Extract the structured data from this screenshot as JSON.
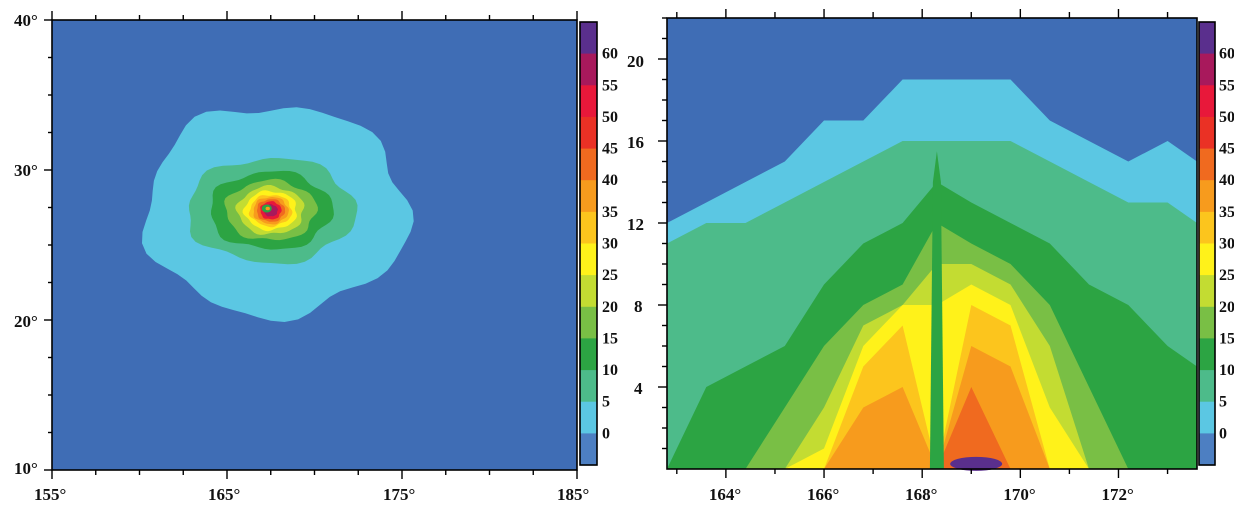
{
  "palette": {
    "background": "#3f6db5",
    "levels": [
      {
        "label": "0",
        "color": "#4d7fc2"
      },
      {
        "label": "5",
        "color": "#5bc7e3"
      },
      {
        "label": "10",
        "color": "#4dbb8a"
      },
      {
        "label": "15",
        "color": "#2ca443"
      },
      {
        "label": "20",
        "color": "#79bf45"
      },
      {
        "label": "25",
        "color": "#c3dc32"
      },
      {
        "label": "30",
        "color": "#fff21a"
      },
      {
        "label": "35",
        "color": "#fcc51d"
      },
      {
        "label": "40",
        "color": "#f79b1d"
      },
      {
        "label": "45",
        "color": "#f06a1f"
      },
      {
        "label": "50",
        "color": "#ea3125"
      },
      {
        "label": "55",
        "color": "#e8183a"
      },
      {
        "label": "60",
        "color": "#a8195c"
      },
      {
        "label": "",
        "color": "#5a2f8d"
      }
    ]
  },
  "chart_data": [
    {
      "type": "heatmap",
      "title": "",
      "xlabel": "",
      "ylabel": "",
      "x_ticks": [
        "155°",
        "165°",
        "175°",
        "185°"
      ],
      "y_ticks": [
        "10°",
        "20°",
        "30°",
        "40°"
      ],
      "xlim": [
        155,
        185
      ],
      "ylim": [
        10,
        40
      ],
      "colorbar_labels": [
        "60",
        "55",
        "50",
        "45",
        "40",
        "35",
        "30",
        "25",
        "20",
        "15",
        "10",
        "5",
        "0"
      ],
      "feature": "tropical cyclone centred near 167.5°E, 27.3°N",
      "center": {
        "lon": 167.5,
        "lat": 27.3
      },
      "contours": [
        {
          "level": 5,
          "radius_lon": 7.5,
          "radius_lat": 7.0
        },
        {
          "level": 10,
          "radius_lon": 4.8,
          "radius_lat": 3.5
        },
        {
          "level": 15,
          "radius_lon": 3.5,
          "radius_lat": 2.6
        },
        {
          "level": 20,
          "radius_lon": 2.6,
          "radius_lat": 2.0
        },
        {
          "level": 25,
          "radius_lon": 1.9,
          "radius_lat": 1.6
        },
        {
          "level": 30,
          "radius_lon": 1.5,
          "radius_lat": 1.3
        },
        {
          "level": 35,
          "radius_lon": 1.2,
          "radius_lat": 1.05
        },
        {
          "level": 40,
          "radius_lon": 1.0,
          "radius_lat": 0.9
        },
        {
          "level": 45,
          "radius_lon": 0.8,
          "radius_lat": 0.75
        },
        {
          "level": 55,
          "radius_lon": 0.6,
          "radius_lat": 0.6
        },
        {
          "level": 60,
          "radius_lon": 0.4,
          "radius_lat": 0.4
        }
      ]
    },
    {
      "type": "heatmap",
      "title": "",
      "xlabel": "",
      "ylabel": "",
      "x_ticks": [
        "164°",
        "166°",
        "168°",
        "170°",
        "172°"
      ],
      "y_ticks": [
        "4",
        "8",
        "12",
        "16",
        "20"
      ],
      "xlim": [
        162.8,
        173.6
      ],
      "ylim": [
        0,
        22
      ],
      "colorbar_labels": [
        "60",
        "55",
        "50",
        "45",
        "40",
        "35",
        "30",
        "25",
        "20",
        "15",
        "10",
        "5",
        "0"
      ],
      "feature": "vertical cross-section through storm centre, eye near 168.3°",
      "columns": [
        {
          "x": 162.8,
          "top": [
            12,
            11
          ]
        },
        {
          "x": 163.6,
          "top": [
            13,
            12,
            4
          ]
        },
        {
          "x": 164.4,
          "top": [
            14,
            12,
            5
          ]
        },
        {
          "x": 165.2,
          "top": [
            15,
            13,
            6,
            3
          ]
        },
        {
          "x": 166.0,
          "top": [
            17,
            14,
            9,
            6,
            3,
            1
          ]
        },
        {
          "x": 166.8,
          "top": [
            17,
            15,
            11,
            8,
            7,
            6,
            5,
            3
          ]
        },
        {
          "x": 167.6,
          "top": [
            19,
            16,
            12,
            9,
            8,
            8,
            7,
            4
          ]
        },
        {
          "x": 168.3,
          "top": [
            19,
            16,
            14,
            12,
            10,
            8
          ]
        },
        {
          "x": 169.0,
          "top": [
            19,
            16,
            13,
            11,
            10,
            9,
            8,
            6,
            4
          ]
        },
        {
          "x": 169.8,
          "top": [
            19,
            16,
            12,
            10,
            9,
            8,
            7,
            5
          ]
        },
        {
          "x": 170.6,
          "top": [
            17,
            15,
            11,
            8,
            6,
            3
          ]
        },
        {
          "x": 171.4,
          "top": [
            16,
            14,
            9,
            4
          ]
        },
        {
          "x": 172.2,
          "top": [
            15,
            13,
            8
          ]
        },
        {
          "x": 173.0,
          "top": [
            16,
            13,
            6
          ]
        },
        {
          "x": 173.6,
          "top": [
            15,
            12,
            5
          ]
        }
      ]
    }
  ]
}
